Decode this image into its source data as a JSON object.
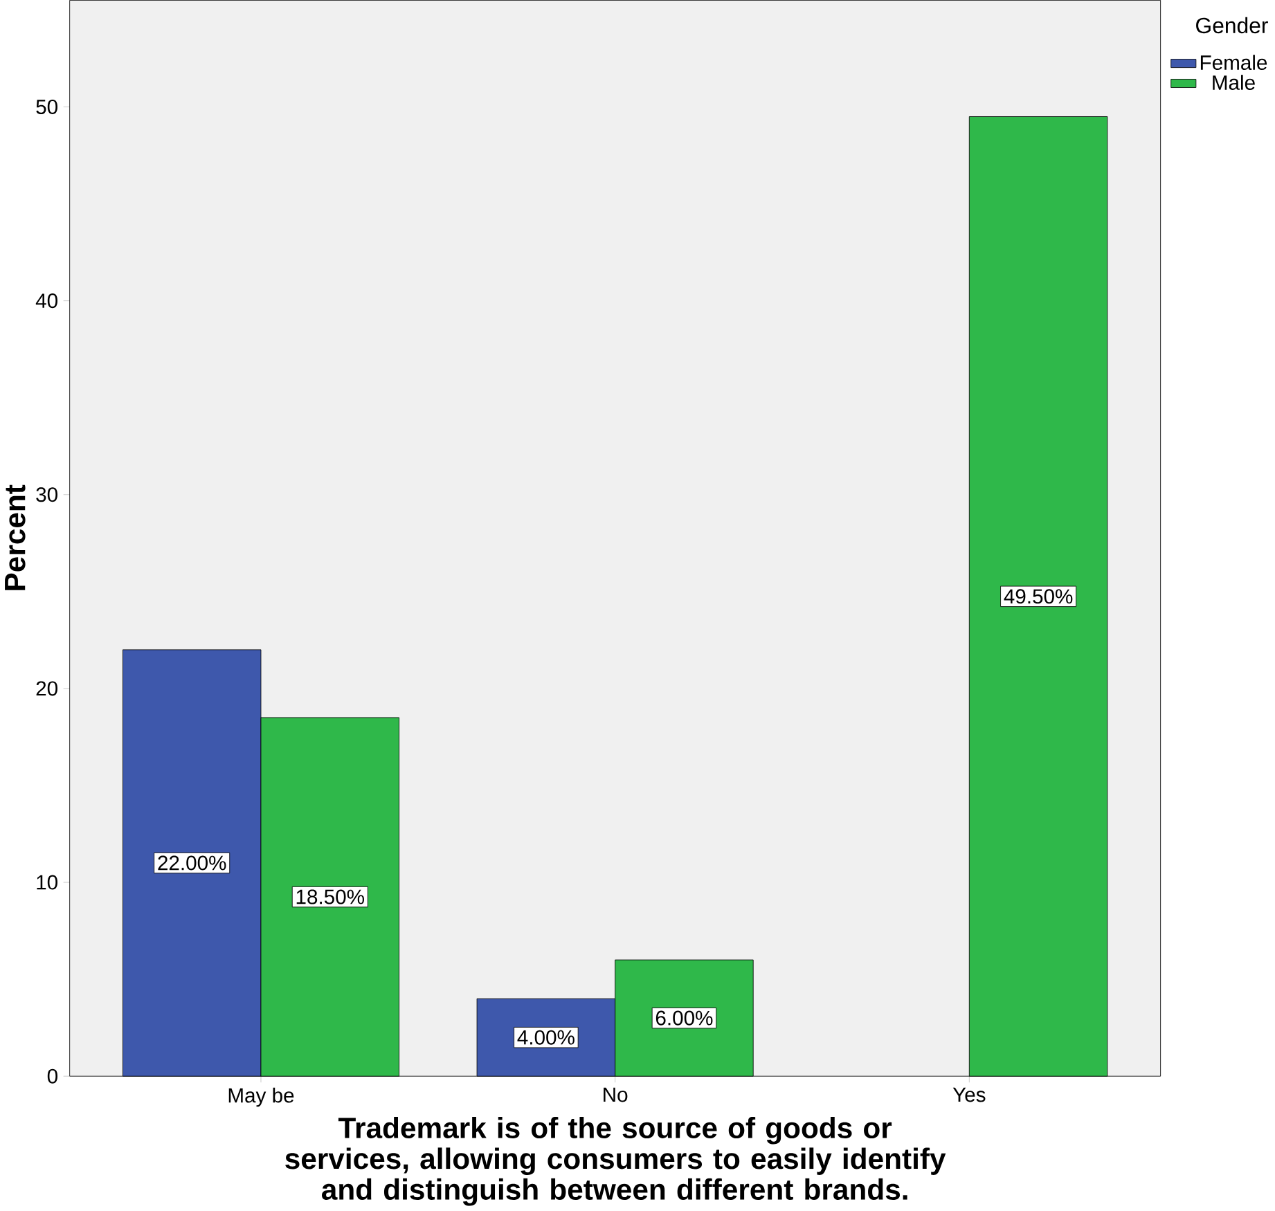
{
  "chart_data": {
    "type": "bar",
    "xlabel": "Trademark is of the source of goods or services, allowing consumers to easily identify and distinguish between different brands.",
    "ylabel": "Percent",
    "legend_title": "Gender",
    "legend": "top right",
    "categories": [
      "May be",
      "No",
      "Yes"
    ],
    "series": [
      {
        "name": "Female",
        "color": "#3e58ac",
        "values": [
          22,
          4,
          null
        ],
        "value_labels": [
          "22.00%",
          "4.00%",
          null
        ]
      },
      {
        "name": "Male",
        "color": "#2fb84a",
        "values": [
          18.5,
          6,
          49.5
        ],
        "value_labels": [
          "18.50%",
          "6.00%",
          "49.50%"
        ]
      }
    ],
    "ylim": [
      0,
      55.5
    ],
    "yticks": [
      0,
      10,
      20,
      30,
      40,
      50
    ],
    "grid": false
  }
}
